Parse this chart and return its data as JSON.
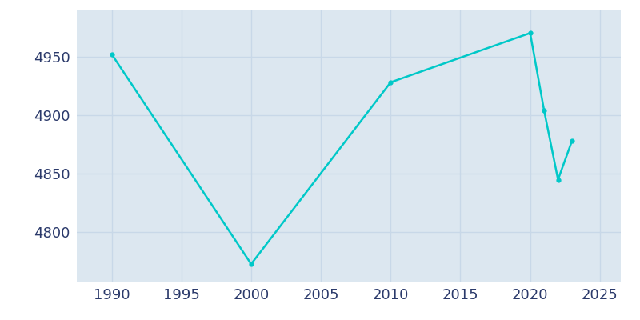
{
  "x": [
    1990,
    2000,
    2010,
    2020,
    2021,
    2022,
    2023
  ],
  "population": [
    4952,
    4773,
    4928,
    4970,
    4904,
    4845,
    4878
  ],
  "line_color": "#00C8C8",
  "marker": "o",
  "marker_size": 3.5,
  "background_color": "#dce7f0",
  "plot_bg_color": "#dce7f0",
  "outer_bg_color": "#ffffff",
  "grid_color": "#c8d8e8",
  "xlim": [
    1987.5,
    2026.5
  ],
  "ylim": [
    4758,
    4990
  ],
  "xticks": [
    1990,
    1995,
    2000,
    2005,
    2010,
    2015,
    2020,
    2025
  ],
  "yticks": [
    4800,
    4850,
    4900,
    4950
  ],
  "tick_label_color": "#2b3a6b",
  "tick_fontsize": 13,
  "linewidth": 1.8
}
